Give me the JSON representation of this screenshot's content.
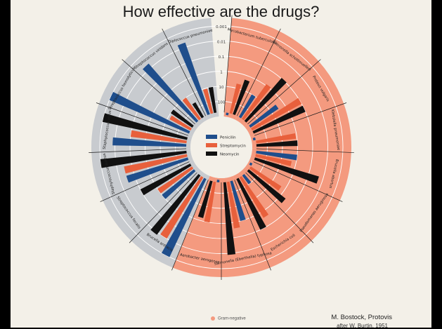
{
  "title": "How effective are the drugs?",
  "credit": "M. Bostock, Protovis",
  "credit_line2": "after W. Burtin, 1951",
  "colors": {
    "background": "#f3f0e8",
    "gram_negative": "#f49a7f",
    "gram_positive": "#c8cbcf",
    "penicilin": "#1f4e8c",
    "streptomycin": "#e8603c",
    "neomycin": "#111111",
    "grid": "#ffffff",
    "spoke": "#1a1a1a"
  },
  "gram_legend": "Gram-negative",
  "chart_data": {
    "type": "radial-bar",
    "title": "How effective are the drugs?",
    "scale": "log",
    "scale_labels": [
      "0.001",
      "0.01",
      "0.1",
      "1",
      "10",
      "100"
    ],
    "scale_values": [
      0.001,
      0.01,
      0.1,
      1,
      10,
      100
    ],
    "series": [
      {
        "name": "Penicilin",
        "color": "#1f4e8c"
      },
      {
        "name": "Streptomycin",
        "color": "#e8603c"
      },
      {
        "name": "Neomycin",
        "color": "#111111"
      }
    ],
    "bacteria": [
      {
        "name": "Mycobacterium tuberculosis",
        "gram": "negative",
        "values": [
          800,
          5,
          2
        ]
      },
      {
        "name": "Salmonella schottmuelleri",
        "gram": "negative",
        "values": [
          10,
          0.8,
          0.09
        ]
      },
      {
        "name": "Proteus vulgaris",
        "gram": "negative",
        "values": [
          3,
          0.1,
          0.1
        ]
      },
      {
        "name": "Klebsiella pneumoniae",
        "gram": "negative",
        "values": [
          850,
          1.2,
          1
        ]
      },
      {
        "name": "Brucella abortus",
        "gram": "negative",
        "values": [
          1,
          2,
          0.02
        ]
      },
      {
        "name": "Pseudomonas aeruginosa",
        "gram": "negative",
        "values": [
          850,
          2,
          0.4
        ]
      },
      {
        "name": "Escherichia coli",
        "gram": "negative",
        "values": [
          100,
          0.4,
          0.1
        ]
      },
      {
        "name": "Salmonella (Eberthella) typhosa",
        "gram": "negative",
        "values": [
          1,
          0.4,
          0.008
        ]
      },
      {
        "name": "Aerobacter aerogenes",
        "gram": "negative",
        "values": [
          870,
          1,
          1.6
        ]
      },
      {
        "name": "Brucella antracis",
        "gram": "positive",
        "values": [
          0.001,
          0.01,
          0.007
        ]
      },
      {
        "name": "Streptococcus fecalis",
        "gram": "positive",
        "values": [
          1,
          1,
          0.1
        ]
      },
      {
        "name": "Staphylococcus aureus",
        "gram": "positive",
        "values": [
          0.03,
          0.03,
          0.001
        ]
      },
      {
        "name": "Staphylococcus albus",
        "gram": "positive",
        "values": [
          0.007,
          0.1,
          0.001
        ]
      },
      {
        "name": "Streptococcus hemolyticus",
        "gram": "positive",
        "values": [
          0.001,
          14,
          10
        ]
      },
      {
        "name": "Streptococcus viridans",
        "gram": "positive",
        "values": [
          0.005,
          10,
          40
        ]
      },
      {
        "name": "Diplococcus pneumoniae",
        "gram": "positive",
        "values": [
          0.005,
          11,
          10
        ]
      }
    ]
  }
}
